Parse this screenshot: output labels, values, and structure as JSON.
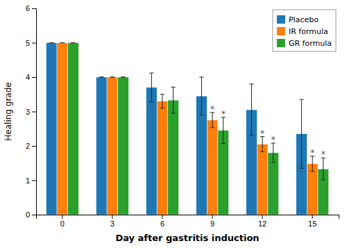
{
  "chart_data": {
    "type": "bar",
    "xlabel": "Day after gastritis induction",
    "ylabel": "Healing grade",
    "categories": [
      "0",
      "3",
      "6",
      "9",
      "12",
      "15"
    ],
    "series": [
      {
        "name": "Placebo",
        "values": [
          5.0,
          4.0,
          3.7,
          3.45,
          3.05,
          2.35
        ],
        "errors": [
          0.0,
          0.0,
          0.42,
          0.55,
          0.75,
          1.0
        ]
      },
      {
        "name": "IR formula",
        "values": [
          5.0,
          4.0,
          3.3,
          2.75,
          2.05,
          1.48
        ],
        "errors": [
          0.0,
          0.0,
          0.2,
          0.22,
          0.22,
          0.22
        ]
      },
      {
        "name": "GR formula",
        "values": [
          5.0,
          4.0,
          3.33,
          2.45,
          1.8,
          1.33
        ],
        "errors": [
          0.0,
          0.0,
          0.38,
          0.38,
          0.28,
          0.32
        ]
      }
    ],
    "ylim": [
      0,
      6
    ],
    "yticks": [
      0,
      1,
      2,
      3,
      4,
      5,
      6
    ],
    "grid": false,
    "legend": "upper right",
    "annotations": [
      {
        "text": "*",
        "category": "9",
        "series": "IR formula"
      },
      {
        "text": "*",
        "category": "12",
        "series": "IR formula"
      },
      {
        "text": "*",
        "category": "15",
        "series": "IR formula"
      },
      {
        "text": "*",
        "category": "9",
        "series": "GR formula"
      },
      {
        "text": "*",
        "category": "12",
        "series": "GR formula"
      },
      {
        "text": "*",
        "category": "15",
        "series": "GR formula"
      }
    ]
  }
}
